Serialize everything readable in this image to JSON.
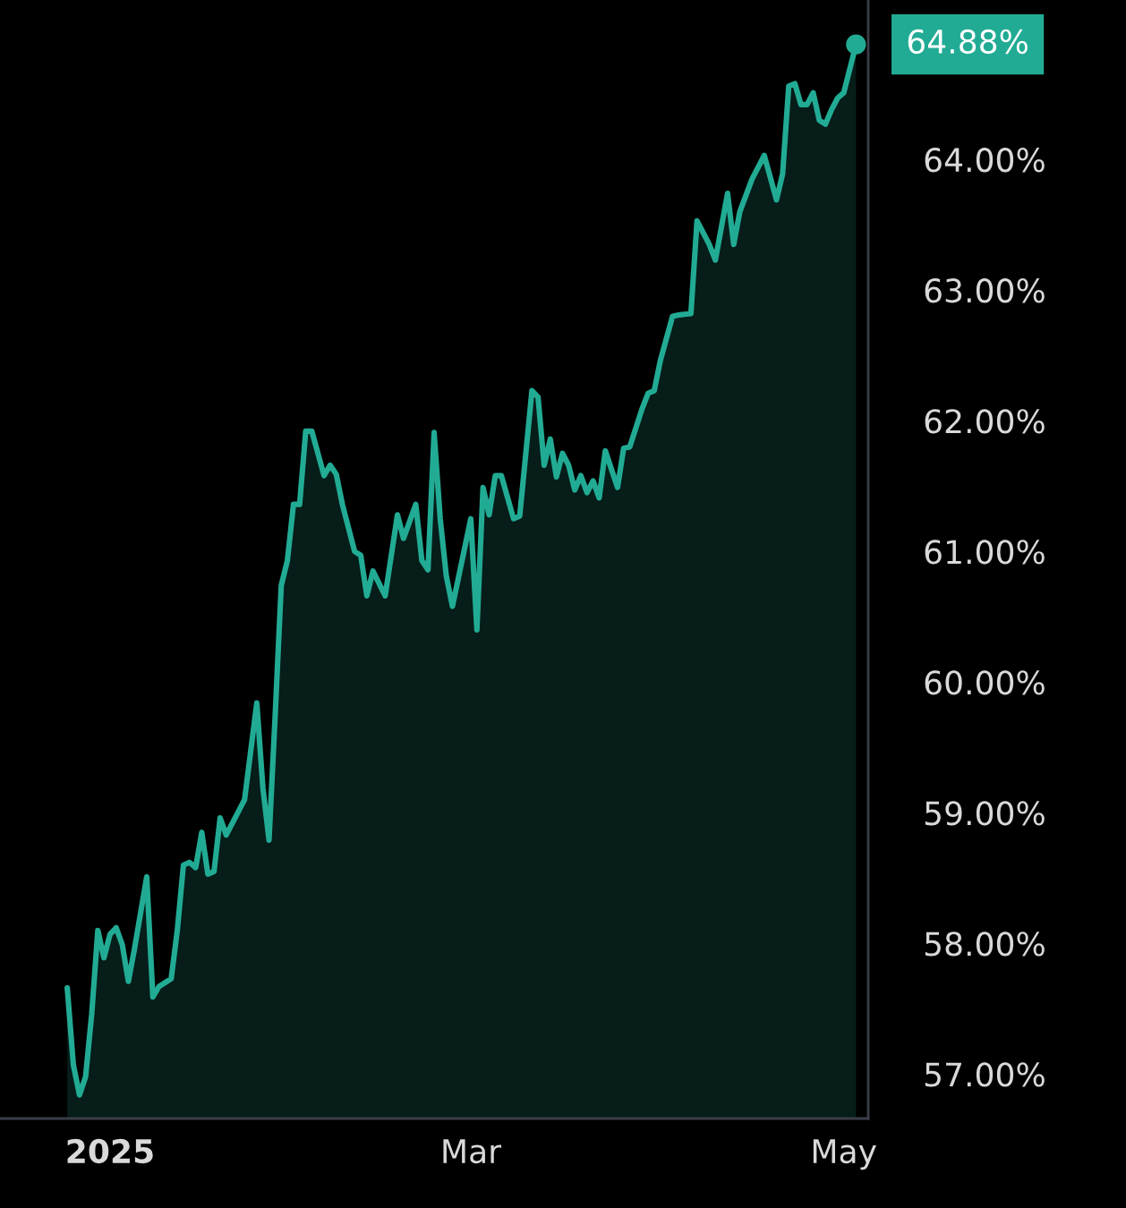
{
  "chart_data": {
    "type": "area",
    "color": "#22ab94",
    "x": [
      "2024-12-25",
      "2024-12-26",
      "2024-12-27",
      "2024-12-28",
      "2024-12-29",
      "2024-12-30",
      "2024-12-31",
      "2025-01-01",
      "2025-01-02",
      "2025-01-03",
      "2025-01-04",
      "2025-01-05",
      "2025-01-07",
      "2025-01-08",
      "2025-01-09",
      "2025-01-10",
      "2025-01-11",
      "2025-01-12",
      "2025-01-13",
      "2025-01-14",
      "2025-01-15",
      "2025-01-16",
      "2025-01-17",
      "2025-01-18",
      "2025-01-19",
      "2025-01-20",
      "2025-01-22",
      "2025-01-23",
      "2025-01-24",
      "2025-01-25",
      "2025-01-26",
      "2025-01-27",
      "2025-01-28",
      "2025-01-29",
      "2025-01-30",
      "2025-01-31",
      "2025-02-01",
      "2025-02-02",
      "2025-02-03",
      "2025-02-05",
      "2025-02-06",
      "2025-02-07",
      "2025-02-08",
      "2025-02-10",
      "2025-02-11",
      "2025-02-12",
      "2025-02-13",
      "2025-02-15",
      "2025-02-17",
      "2025-02-18",
      "2025-02-20",
      "2025-02-21",
      "2025-02-22",
      "2025-02-23",
      "2025-02-24",
      "2025-02-25",
      "2025-02-26",
      "2025-03-01",
      "2025-03-02",
      "2025-03-03",
      "2025-03-04",
      "2025-03-05",
      "2025-03-06",
      "2025-03-08",
      "2025-03-09",
      "2025-03-11",
      "2025-03-12",
      "2025-03-13",
      "2025-03-14",
      "2025-03-15",
      "2025-03-16",
      "2025-03-17",
      "2025-03-18",
      "2025-03-19",
      "2025-03-20",
      "2025-03-21",
      "2025-03-22",
      "2025-03-23",
      "2025-03-25",
      "2025-03-26",
      "2025-03-27",
      "2025-03-29",
      "2025-03-30",
      "2025-03-31",
      "2025-04-01",
      "2025-04-03",
      "2025-04-04",
      "2025-04-06",
      "2025-04-07",
      "2025-04-09",
      "2025-04-10",
      "2025-04-12",
      "2025-04-13",
      "2025-04-14",
      "2025-04-16",
      "2025-04-18",
      "2025-04-20",
      "2025-04-21",
      "2025-04-22",
      "2025-04-23",
      "2025-04-24",
      "2025-04-25",
      "2025-04-26",
      "2025-04-27",
      "2025-04-28",
      "2025-04-29",
      "2025-04-30",
      "2025-05-01",
      "2025-05-03"
    ],
    "values": [
      57.66,
      57.07,
      56.84,
      56.98,
      57.46,
      58.1,
      57.89,
      58.07,
      58.12,
      57.99,
      57.71,
      57.96,
      58.51,
      57.59,
      57.67,
      57.7,
      57.73,
      58.1,
      58.6,
      58.62,
      58.58,
      58.85,
      58.53,
      58.55,
      58.96,
      58.83,
      59.01,
      59.1,
      59.47,
      59.84,
      59.19,
      58.79,
      59.74,
      60.74,
      60.93,
      61.36,
      61.36,
      61.92,
      61.92,
      61.58,
      61.66,
      61.59,
      61.36,
      61.0,
      60.97,
      60.66,
      60.85,
      60.66,
      61.28,
      61.1,
      61.36,
      60.93,
      60.86,
      61.91,
      61.25,
      60.81,
      60.58,
      61.25,
      60.4,
      61.49,
      61.28,
      61.58,
      61.58,
      61.25,
      61.27,
      62.23,
      62.18,
      61.66,
      61.86,
      61.57,
      61.75,
      61.66,
      61.47,
      61.58,
      61.45,
      61.54,
      61.41,
      61.77,
      61.49,
      61.79,
      61.8,
      62.09,
      62.21,
      62.23,
      62.46,
      62.8,
      62.81,
      62.82,
      63.53,
      63.35,
      63.23,
      63.74,
      63.35,
      63.6,
      63.85,
      64.03,
      63.69,
      63.89,
      64.56,
      64.58,
      64.42,
      64.42,
      64.51,
      64.3,
      64.27,
      64.38,
      64.47,
      64.51,
      64.88
    ],
    "xlim": [
      "2024-12-14",
      "2025-05-05"
    ],
    "xticks": [
      {
        "value": "2025-01-01",
        "label": "2025"
      },
      {
        "value": "2025-03-01",
        "label": "Mar"
      },
      {
        "value": "2025-05-01",
        "label": "May"
      }
    ],
    "ylim": [
      56.66,
      65.22
    ],
    "yticks": [
      {
        "value": 57,
        "label": "57.00%"
      },
      {
        "value": 58,
        "label": "58.00%"
      },
      {
        "value": 59,
        "label": "59.00%"
      },
      {
        "value": 60,
        "label": "60.00%"
      },
      {
        "value": 61,
        "label": "61.00%"
      },
      {
        "value": 62,
        "label": "62.00%"
      },
      {
        "value": 63,
        "label": "63.00%"
      },
      {
        "value": 64,
        "label": "64.00%"
      }
    ],
    "annotations": [
      {
        "text": "64.88%",
        "x": "2025-05-03",
        "y": 64.88
      }
    ]
  }
}
